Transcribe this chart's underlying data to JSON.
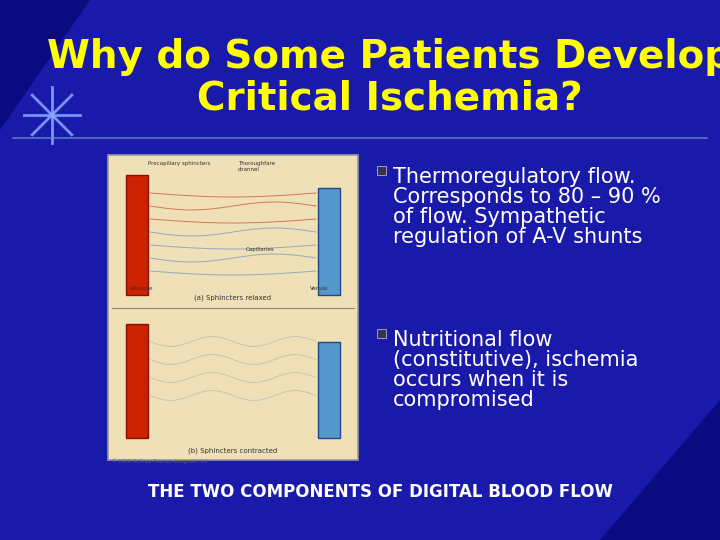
{
  "title_line1": "Why do Some Patients Develop",
  "title_line2": "Critical Ischemia?",
  "title_color": "#FFFF00",
  "title_fontsize": 28,
  "bg_color": "#1a1aaa",
  "bullet1_text": [
    "Thermoregulatory flow.",
    "Corresponds to 80 – 90 %",
    "of flow. Sympathetic",
    "regulation of A-V shunts"
  ],
  "bullet2_text": [
    "Nutritional flow",
    "(constitutive), ischemia",
    "occurs when it is",
    "compromised"
  ],
  "bullet_color": "#FFFFFF",
  "bullet_fontsize": 15,
  "footer_text": "THE TWO COMPONENTS OF DIGITAL BLOOD FLOW",
  "footer_color": "#FFFFFF",
  "footer_fontsize": 12,
  "image_bg_color": "#f0e0b8",
  "image_border_color": "#999999",
  "divider_color": "#aaaaaa",
  "star_color": "#88aaff",
  "corner_dark_color": "#000066"
}
